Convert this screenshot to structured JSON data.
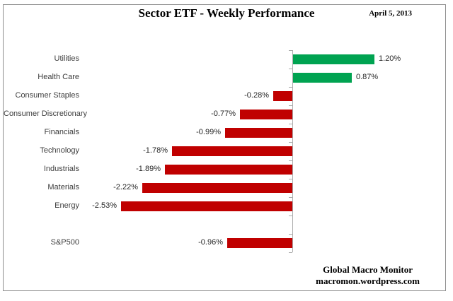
{
  "header": {
    "title": "Sector ETF - Weekly Performance",
    "date": "April 5, 2013"
  },
  "footer": {
    "line1": "Global Macro Monitor",
    "line2": "macromon.wordpress.com"
  },
  "chart_data": {
    "type": "bar",
    "orientation": "horizontal",
    "title": "Sector ETF - Weekly Performance",
    "date": "April 5, 2013",
    "categories": [
      "Utilities",
      "Health Care",
      "Consumer Staples",
      "Consumer Discretionary",
      "Financials",
      "Technology",
      "Industrials",
      "Materials",
      "Energy",
      "S&P500"
    ],
    "values": [
      1.2,
      0.87,
      -0.28,
      -0.77,
      -0.99,
      -1.78,
      -1.89,
      -2.22,
      -2.53,
      -0.96
    ],
    "value_labels": [
      "1.20%",
      "0.87%",
      "-0.28%",
      "-0.77%",
      "-0.99%",
      "-1.78%",
      "-1.89%",
      "-2.22%",
      "-2.53%",
      "-0.96%"
    ],
    "separator_gap_before": "S&P500",
    "positive_color": "#00A351",
    "negative_color": "#C00000",
    "axis_color": "#ABABAB",
    "xlim": [
      -2.6,
      1.3
    ],
    "grid": false,
    "legend": false,
    "xlabel": "",
    "ylabel": ""
  }
}
